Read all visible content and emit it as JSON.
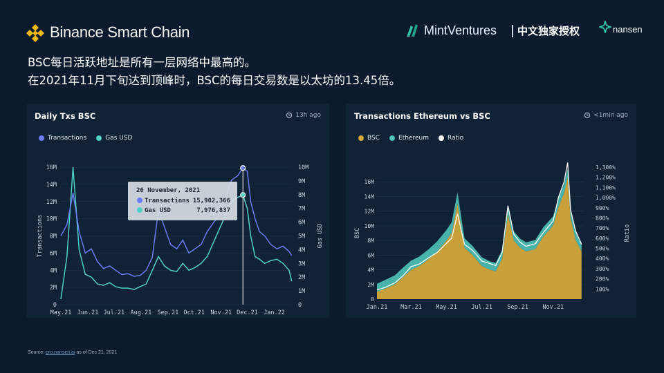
{
  "header": {
    "title": "Binance Smart Chain"
  },
  "brands": {
    "mint": "MintVentures",
    "divider_text": "中文独家授权",
    "nansen": "nansen"
  },
  "headline": {
    "line1": "BSC每日活跃地址是所有一层网络中最高的。",
    "line2": "在2021年11月下旬达到顶峰时，BSC的每日交易数是以太坊的13.45倍。"
  },
  "left_panel": {
    "title": "Daily Txs BSC",
    "updated": "13h ago"
  },
  "right_panel": {
    "title": "Transactions Ethereum vs BSC",
    "updated": "<1min ago"
  },
  "tooltip": {
    "date": "26 November, 2021",
    "rows": [
      {
        "label": "Transactions",
        "value": "15,902,366"
      },
      {
        "label": "Gas USD",
        "value": "7,976,837"
      }
    ]
  },
  "colors": {
    "bsc_tx": "#6b7cf5",
    "gas": "#4fd1c5",
    "bsc_area": "#d4a73a",
    "eth_area": "#4fc3b7",
    "ratio": "#ffffff"
  },
  "source": {
    "prefix": "Source: ",
    "link": "pro.nansen.ai",
    "suffix": " as of Dec 21, 2021"
  },
  "chart_data": [
    {
      "type": "line",
      "title": "Daily Txs BSC",
      "ylabel": "Transactions",
      "y2label": "Gas USD",
      "x_ticks": [
        "May.21",
        "Jun.21",
        "Jul.21",
        "Aug.21",
        "Sep.21",
        "Oct.21",
        "Nov.21",
        "Dec.21",
        "Jan.22"
      ],
      "y_ticks": [
        "0",
        "2M",
        "4M",
        "6M",
        "8M",
        "10M",
        "12M",
        "14M",
        "16M"
      ],
      "y2_ticks": [
        "0",
        "1M",
        "2M",
        "3M",
        "4M",
        "5M",
        "6M",
        "7M",
        "8M",
        "9M",
        "10M"
      ],
      "ylim": [
        0,
        16000000
      ],
      "y2lim": [
        0,
        10000000
      ],
      "series": [
        {
          "name": "Transactions",
          "x": [
            "2021-05-01",
            "2021-05-08",
            "2021-05-15",
            "2021-05-22",
            "2021-05-29",
            "2021-06-05",
            "2021-06-12",
            "2021-06-19",
            "2021-06-26",
            "2021-07-03",
            "2021-07-10",
            "2021-07-17",
            "2021-07-24",
            "2021-07-31",
            "2021-08-07",
            "2021-08-14",
            "2021-08-21",
            "2021-08-28",
            "2021-09-04",
            "2021-09-11",
            "2021-09-18",
            "2021-09-25",
            "2021-10-02",
            "2021-10-09",
            "2021-10-16",
            "2021-10-23",
            "2021-10-30",
            "2021-11-06",
            "2021-11-13",
            "2021-11-20",
            "2021-11-26",
            "2021-12-01",
            "2021-12-05",
            "2021-12-10",
            "2021-12-15",
            "2021-12-21",
            "2021-12-28",
            "2022-01-04",
            "2022-01-11",
            "2022-01-18",
            "2022-01-21"
          ],
          "values": [
            8000000,
            9300000,
            13000000,
            8500000,
            6000000,
            6500000,
            5000000,
            4200000,
            4500000,
            4000000,
            3500000,
            3600000,
            3300000,
            3400000,
            4000000,
            5500000,
            11000000,
            9000000,
            7000000,
            6500000,
            7500000,
            6000000,
            6500000,
            7000000,
            8500000,
            9500000,
            10500000,
            12500000,
            14500000,
            15000000,
            15902366,
            15500000,
            12000000,
            10000000,
            8500000,
            8000000,
            7000000,
            6500000,
            6800000,
            6200000,
            5700000
          ]
        },
        {
          "name": "Gas USD",
          "x": [
            "2021-05-01",
            "2021-05-08",
            "2021-05-15",
            "2021-05-22",
            "2021-05-29",
            "2021-06-05",
            "2021-06-12",
            "2021-06-19",
            "2021-06-26",
            "2021-07-03",
            "2021-07-10",
            "2021-07-17",
            "2021-07-24",
            "2021-07-31",
            "2021-08-07",
            "2021-08-14",
            "2021-08-21",
            "2021-08-28",
            "2021-09-04",
            "2021-09-11",
            "2021-09-18",
            "2021-09-25",
            "2021-10-02",
            "2021-10-09",
            "2021-10-16",
            "2021-10-23",
            "2021-10-30",
            "2021-11-06",
            "2021-11-13",
            "2021-11-20",
            "2021-11-26",
            "2021-12-01",
            "2021-12-05",
            "2021-12-10",
            "2021-12-15",
            "2021-12-21",
            "2021-12-28",
            "2022-01-04",
            "2022-01-11",
            "2022-01-18",
            "2022-01-21"
          ],
          "values": [
            400000,
            3500000,
            10000000,
            4000000,
            2200000,
            2000000,
            1500000,
            1400000,
            1600000,
            1300000,
            1200000,
            1200000,
            1100000,
            1300000,
            1500000,
            2500000,
            3500000,
            2800000,
            2500000,
            2400000,
            3000000,
            2500000,
            2700000,
            3000000,
            3500000,
            4500000,
            5500000,
            6500000,
            7500000,
            7800000,
            7976837,
            7000000,
            5000000,
            3500000,
            3300000,
            3000000,
            3200000,
            3300000,
            3000000,
            2500000,
            1700000
          ]
        }
      ]
    },
    {
      "type": "area",
      "title": "Transactions Ethereum vs BSC",
      "ylabel": "BSC",
      "y2label": "Ratio",
      "x_ticks": [
        "Jan.21",
        "Mar.21",
        "May.21",
        "Jul.21",
        "Sep.21",
        "Nov.21"
      ],
      "y_ticks": [
        "0",
        "2M",
        "4M",
        "6M",
        "8M",
        "10M",
        "12M",
        "14M",
        "16M"
      ],
      "y2_ticks": [
        "100%",
        "200%",
        "300%",
        "400%",
        "500%",
        "600%",
        "700%",
        "800%",
        "900%",
        "1,000%",
        "1,100%",
        "1,200%",
        "1,300%"
      ],
      "ylim": [
        0,
        18000000
      ],
      "y2lim": [
        0,
        1300
      ],
      "series": [
        {
          "name": "BSC",
          "x": [
            "2021-01-01",
            "2021-01-15",
            "2021-02-01",
            "2021-02-15",
            "2021-03-01",
            "2021-03-15",
            "2021-04-01",
            "2021-04-15",
            "2021-05-01",
            "2021-05-10",
            "2021-05-20",
            "2021-06-01",
            "2021-06-15",
            "2021-07-01",
            "2021-07-15",
            "2021-07-25",
            "2021-08-05",
            "2021-08-15",
            "2021-08-25",
            "2021-09-05",
            "2021-09-15",
            "2021-10-01",
            "2021-10-15",
            "2021-11-01",
            "2021-11-10",
            "2021-11-20",
            "2021-11-26",
            "2021-12-01",
            "2021-12-10",
            "2021-12-20"
          ],
          "values": [
            1000000,
            1400000,
            2000000,
            3000000,
            4000000,
            4500000,
            5500000,
            6500000,
            8000000,
            9000000,
            13000000,
            7000000,
            6000000,
            4500000,
            4000000,
            3800000,
            5500000,
            11500000,
            8000000,
            7000000,
            6500000,
            6800000,
            8500000,
            10000000,
            12500000,
            14500000,
            16500000,
            11000000,
            8000000,
            6500000
          ]
        },
        {
          "name": "Ethereum",
          "x": [
            "2021-01-01",
            "2021-01-15",
            "2021-02-01",
            "2021-02-15",
            "2021-03-01",
            "2021-03-15",
            "2021-04-01",
            "2021-04-15",
            "2021-05-01",
            "2021-05-10",
            "2021-05-20",
            "2021-06-01",
            "2021-06-15",
            "2021-07-01",
            "2021-07-15",
            "2021-07-25",
            "2021-08-05",
            "2021-08-15",
            "2021-08-25",
            "2021-09-05",
            "2021-09-15",
            "2021-10-01",
            "2021-10-15",
            "2021-11-01",
            "2021-11-10",
            "2021-11-20",
            "2021-11-26",
            "2021-12-01",
            "2021-12-10",
            "2021-12-20"
          ],
          "values": [
            1100000,
            1200000,
            1250000,
            1300000,
            1250000,
            1300000,
            1350000,
            1400000,
            1450000,
            1500000,
            1550000,
            1300000,
            1250000,
            1200000,
            1150000,
            1150000,
            1200000,
            1250000,
            1250000,
            1250000,
            1250000,
            1250000,
            1300000,
            1300000,
            1250000,
            1250000,
            1250000,
            1250000,
            1200000,
            1200000
          ]
        },
        {
          "name": "Ratio",
          "x": [
            "2021-01-01",
            "2021-01-15",
            "2021-02-01",
            "2021-02-15",
            "2021-03-01",
            "2021-03-15",
            "2021-04-01",
            "2021-04-15",
            "2021-05-01",
            "2021-05-10",
            "2021-05-20",
            "2021-06-01",
            "2021-06-15",
            "2021-07-01",
            "2021-07-15",
            "2021-07-25",
            "2021-08-05",
            "2021-08-15",
            "2021-08-25",
            "2021-09-05",
            "2021-09-15",
            "2021-10-01",
            "2021-10-15",
            "2021-11-01",
            "2021-11-10",
            "2021-11-20",
            "2021-11-26",
            "2021-12-01",
            "2021-12-10",
            "2021-12-20"
          ],
          "values": [
            90,
            115,
            160,
            230,
            320,
            345,
            410,
            460,
            550,
            600,
            840,
            540,
            480,
            375,
            350,
            330,
            460,
            920,
            640,
            560,
            520,
            545,
            655,
            770,
            1000,
            1160,
            1345,
            880,
            670,
            540
          ]
        }
      ]
    }
  ]
}
